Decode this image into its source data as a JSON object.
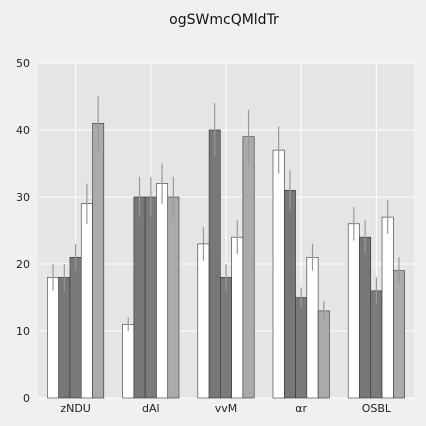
{
  "chart_data": {
    "type": "bar",
    "title": "ogSWmcQMldTr",
    "categories": [
      "zNDU",
      "dAl",
      "vvM",
      "αr",
      "OSBL"
    ],
    "ylim": [
      0,
      50
    ],
    "yticks": [
      0,
      10,
      20,
      30,
      40,
      50
    ],
    "grid": true,
    "series": [
      {
        "values": [
          18,
          11,
          23,
          37,
          26
        ],
        "errors": [
          2,
          1,
          2.5,
          3.5,
          2.5
        ],
        "color": "#ffffff"
      },
      {
        "values": [
          18,
          30,
          40,
          31,
          24
        ],
        "errors": [
          2,
          3,
          4,
          3,
          2.5
        ],
        "color": "#777777"
      },
      {
        "values": [
          21,
          30,
          18,
          15,
          16
        ],
        "errors": [
          2,
          3,
          2,
          1.5,
          2
        ],
        "color": "#7a7a7a"
      },
      {
        "values": [
          29,
          32,
          24,
          21,
          27
        ],
        "errors": [
          3,
          3,
          2.5,
          2,
          2.5
        ],
        "color": "#ffffff"
      },
      {
        "values": [
          41,
          30,
          39,
          13,
          19
        ],
        "errors": [
          4,
          3,
          4,
          1.5,
          2
        ],
        "color": "#aaaaaa"
      }
    ],
    "plot_background": "#e5e5e5",
    "grid_color": "#ffffff",
    "error_color": "#999999"
  }
}
